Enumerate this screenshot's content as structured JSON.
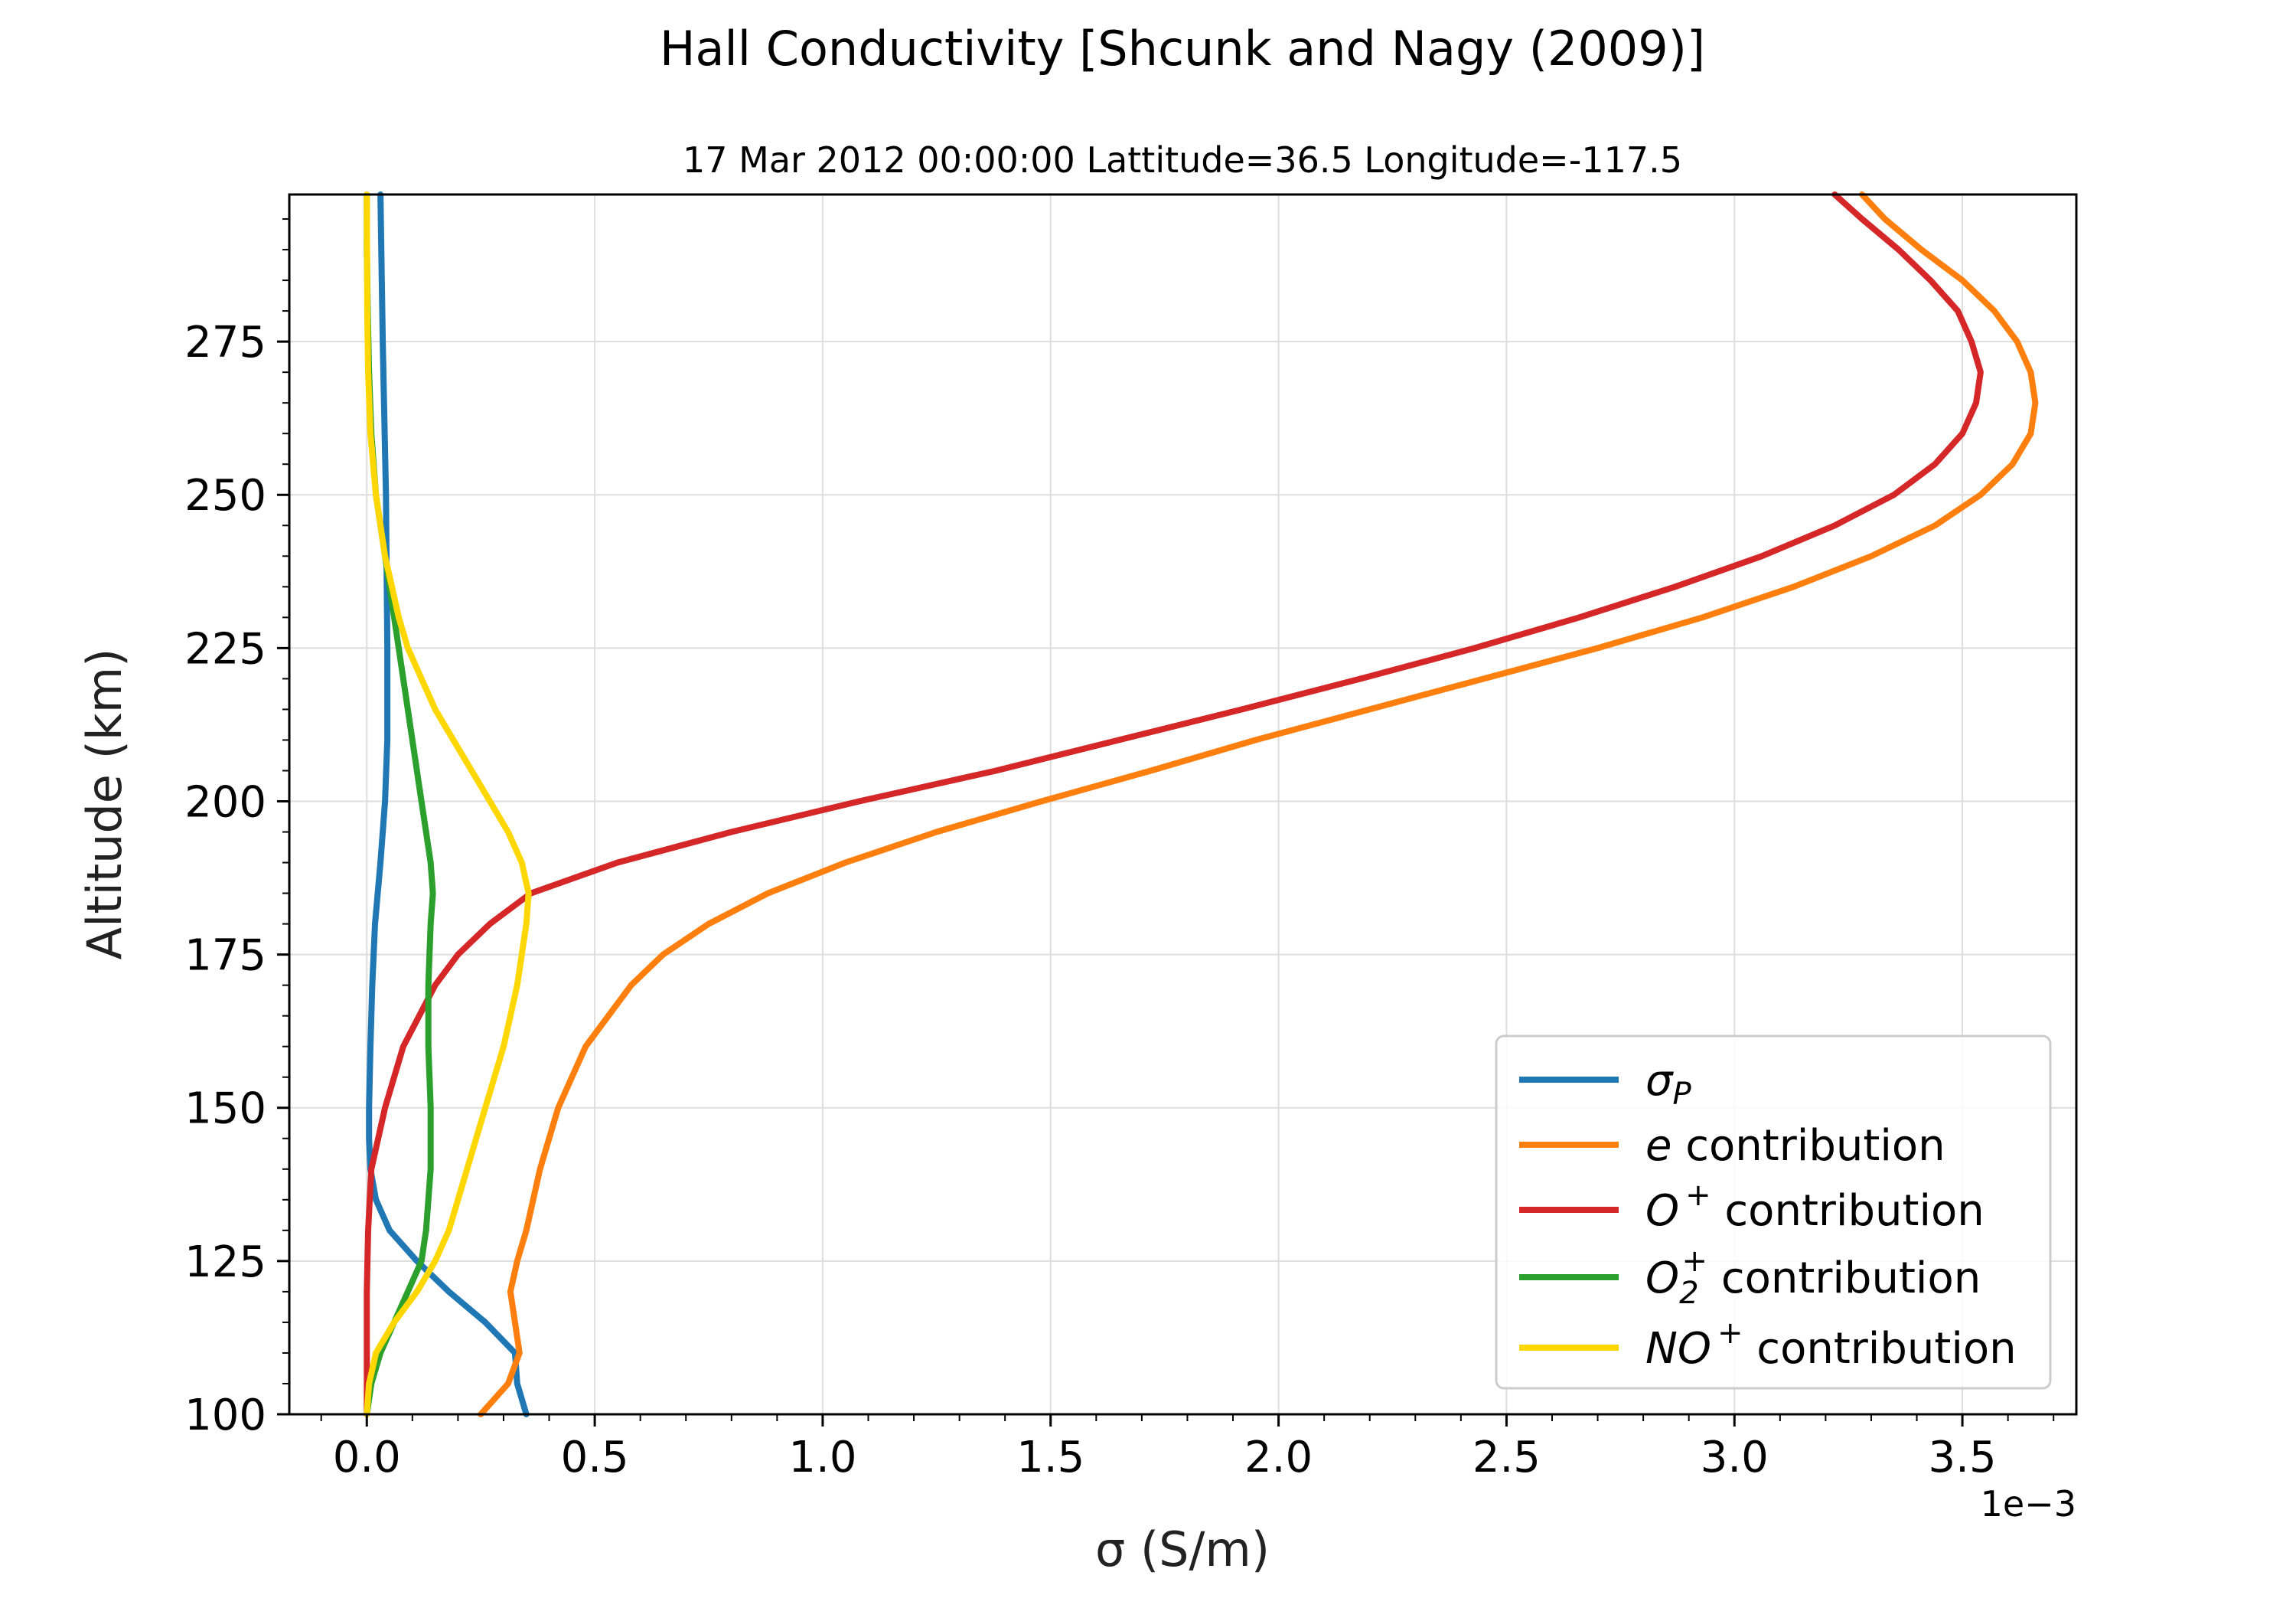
{
  "chart_data": {
    "type": "line",
    "title": "Hall Conductivity [Shcunk and Nagy (2009)]",
    "subtitle": "17 Mar 2012 00:00:00 Lattitude=36.5 Longitude=-117.5",
    "xlabel": "σ (S/m)",
    "ylabel": "Altitude (km)",
    "x_offset_label": "1e−3",
    "x_scale": 0.001,
    "xlim": [
      -0.00017,
      0.00375
    ],
    "ylim": [
      100,
      299
    ],
    "x_ticks": [
      0.0,
      0.0005,
      0.001,
      0.0015,
      0.002,
      0.0025,
      0.003,
      0.0035
    ],
    "x_tick_labels": [
      "0.0",
      "0.5",
      "1.0",
      "1.5",
      "2.0",
      "2.5",
      "3.0",
      "3.5"
    ],
    "y_ticks": [
      100,
      125,
      150,
      175,
      200,
      225,
      250,
      275
    ],
    "y_tick_labels": [
      "100",
      "125",
      "150",
      "175",
      "200",
      "225",
      "250",
      "275"
    ],
    "grid": true,
    "legend_position": "lower-right",
    "series": [
      {
        "name": "σP",
        "legend": {
          "base": "σ",
          "sub": "P",
          "sup": "",
          "rest": ""
        },
        "color": "#1f77b4",
        "points": [
          [
            100,
            0.00035
          ],
          [
            105,
            0.00033
          ],
          [
            110,
            0.000325
          ],
          [
            115,
            0.00026
          ],
          [
            120,
            0.00018
          ],
          [
            125,
            0.00011
          ],
          [
            130,
            5e-05
          ],
          [
            135,
            2e-05
          ],
          [
            140,
            8e-06
          ],
          [
            145,
            5e-06
          ],
          [
            150,
            5e-06
          ],
          [
            160,
            8e-06
          ],
          [
            170,
            1.2e-05
          ],
          [
            180,
            1.8e-05
          ],
          [
            190,
            3e-05
          ],
          [
            200,
            4e-05
          ],
          [
            210,
            4.5e-05
          ],
          [
            225,
            4.5e-05
          ],
          [
            250,
            4.2e-05
          ],
          [
            275,
            3.5e-05
          ],
          [
            299,
            3e-05
          ]
        ]
      },
      {
        "name": "e contribution",
        "legend": {
          "base": "e",
          "sub": "",
          "sup": "",
          "rest": " contribution"
        },
        "color": "#ff7f0e",
        "points": [
          [
            100,
            0.00025
          ],
          [
            105,
            0.00031
          ],
          [
            110,
            0.000335
          ],
          [
            115,
            0.000325
          ],
          [
            120,
            0.000315
          ],
          [
            125,
            0.00033
          ],
          [
            130,
            0.00035
          ],
          [
            140,
            0.00038
          ],
          [
            150,
            0.00042
          ],
          [
            160,
            0.00048
          ],
          [
            170,
            0.00058
          ],
          [
            175,
            0.00065
          ],
          [
            180,
            0.00075
          ],
          [
            185,
            0.00088
          ],
          [
            190,
            0.00105
          ],
          [
            195,
            0.00125
          ],
          [
            200,
            0.00148
          ],
          [
            205,
            0.00172
          ],
          [
            210,
            0.00195
          ],
          [
            215,
            0.0022
          ],
          [
            220,
            0.00245
          ],
          [
            225,
            0.0027
          ],
          [
            230,
            0.00293
          ],
          [
            235,
            0.00313
          ],
          [
            240,
            0.0033
          ],
          [
            245,
            0.00344
          ],
          [
            250,
            0.00354
          ],
          [
            255,
            0.00361
          ],
          [
            260,
            0.00365
          ],
          [
            265,
            0.00366
          ],
          [
            270,
            0.00365
          ],
          [
            275,
            0.00362
          ],
          [
            280,
            0.00357
          ],
          [
            285,
            0.0035
          ],
          [
            290,
            0.00341
          ],
          [
            295,
            0.00333
          ],
          [
            299,
            0.00328
          ]
        ]
      },
      {
        "name": "O+ contribution",
        "legend": {
          "base": "O",
          "sub": "",
          "sup": "+",
          "rest": "  contribution"
        },
        "color": "#d62728",
        "points": [
          [
            100,
            0.0
          ],
          [
            110,
            0.0
          ],
          [
            120,
            0.0
          ],
          [
            130,
            3e-06
          ],
          [
            140,
            1e-05
          ],
          [
            150,
            4e-05
          ],
          [
            160,
            8e-05
          ],
          [
            170,
            0.00015
          ],
          [
            175,
            0.0002
          ],
          [
            180,
            0.00027
          ],
          [
            185,
            0.00036
          ],
          [
            190,
            0.00055
          ],
          [
            195,
            0.0008
          ],
          [
            200,
            0.00108
          ],
          [
            205,
            0.00138
          ],
          [
            210,
            0.00165
          ],
          [
            215,
            0.00192
          ],
          [
            220,
            0.00218
          ],
          [
            225,
            0.00243
          ],
          [
            230,
            0.00266
          ],
          [
            235,
            0.00287
          ],
          [
            240,
            0.00306
          ],
          [
            245,
            0.00322
          ],
          [
            250,
            0.00335
          ],
          [
            255,
            0.00344
          ],
          [
            260,
            0.0035
          ],
          [
            265,
            0.00353
          ],
          [
            270,
            0.00354
          ],
          [
            275,
            0.00352
          ],
          [
            280,
            0.00349
          ],
          [
            285,
            0.00343
          ],
          [
            290,
            0.00336
          ],
          [
            295,
            0.00328
          ],
          [
            299,
            0.00322
          ]
        ]
      },
      {
        "name": "O2+ contribution",
        "legend": {
          "base": "O",
          "sub": "2",
          "sup": "+",
          "rest": "  contribution"
        },
        "color": "#2ca02c",
        "points": [
          [
            100,
            0.0
          ],
          [
            105,
            1e-05
          ],
          [
            110,
            3e-05
          ],
          [
            115,
            6e-05
          ],
          [
            120,
            9e-05
          ],
          [
            125,
            0.00012
          ],
          [
            130,
            0.00013
          ],
          [
            135,
            0.000135
          ],
          [
            140,
            0.00014
          ],
          [
            150,
            0.00014
          ],
          [
            160,
            0.000135
          ],
          [
            170,
            0.000135
          ],
          [
            180,
            0.00014
          ],
          [
            185,
            0.000145
          ],
          [
            190,
            0.00014
          ],
          [
            195,
            0.00013
          ],
          [
            200,
            0.00012
          ],
          [
            210,
            0.0001
          ],
          [
            220,
            8e-05
          ],
          [
            230,
            6e-05
          ],
          [
            240,
            4e-05
          ],
          [
            250,
            2e-05
          ],
          [
            260,
            1e-05
          ],
          [
            270,
            5e-06
          ],
          [
            280,
            2e-06
          ],
          [
            290,
            0.0
          ],
          [
            299,
            0.0
          ]
        ]
      },
      {
        "name": "NO+ contribution",
        "legend": {
          "base": "NO",
          "sub": "",
          "sup": "+",
          "rest": "  contribution"
        },
        "color": "#ffd700",
        "points": [
          [
            100,
            0.0
          ],
          [
            105,
            5e-06
          ],
          [
            110,
            2e-05
          ],
          [
            115,
            6e-05
          ],
          [
            120,
            0.00011
          ],
          [
            125,
            0.00015
          ],
          [
            130,
            0.00018
          ],
          [
            135,
            0.0002
          ],
          [
            140,
            0.00022
          ],
          [
            150,
            0.00026
          ],
          [
            160,
            0.0003
          ],
          [
            170,
            0.00033
          ],
          [
            180,
            0.00035
          ],
          [
            185,
            0.000355
          ],
          [
            190,
            0.00034
          ],
          [
            195,
            0.00031
          ],
          [
            200,
            0.00027
          ],
          [
            205,
            0.00023
          ],
          [
            210,
            0.00019
          ],
          [
            215,
            0.00015
          ],
          [
            220,
            0.00012
          ],
          [
            225,
            9e-05
          ],
          [
            230,
            7e-05
          ],
          [
            240,
            4e-05
          ],
          [
            250,
            2e-05
          ],
          [
            260,
            8e-06
          ],
          [
            270,
            3e-06
          ],
          [
            280,
            1e-06
          ],
          [
            299,
            0.0
          ]
        ]
      }
    ]
  }
}
